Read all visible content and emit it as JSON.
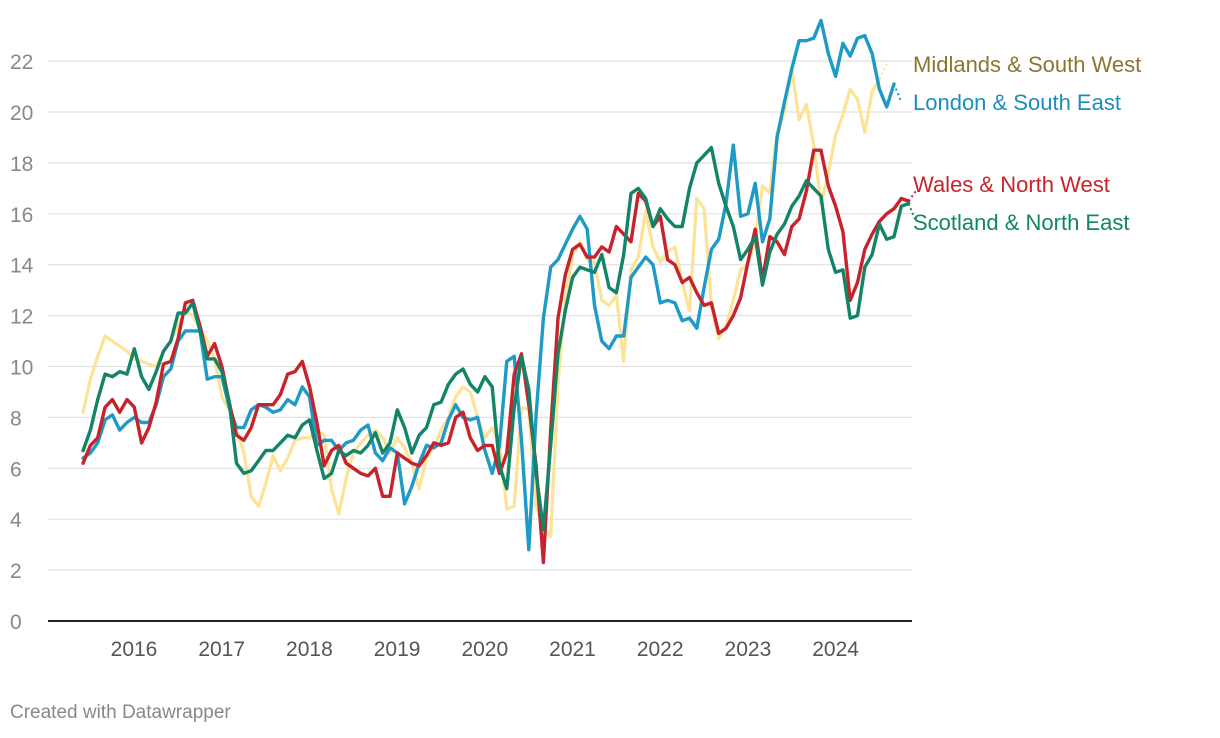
{
  "chart_data": {
    "type": "line",
    "title": "",
    "xlabel": "",
    "ylabel": "",
    "ylim": [
      0,
      23.5
    ],
    "yticks": [
      0,
      2,
      4,
      6,
      8,
      10,
      12,
      14,
      16,
      18,
      20,
      22
    ],
    "xticks": [
      2016,
      2017,
      2018,
      2019,
      2020,
      2021,
      2022,
      2023,
      2024
    ],
    "x_range": [
      2015.25,
      2024.9
    ],
    "legend": "inline-right",
    "series": [
      {
        "name": "Midlands & South West",
        "color": "#fde395",
        "label_color": "#8c7531",
        "x_start": 2015.42,
        "x_step": 0.0833,
        "values": [
          8.2,
          9.5,
          10.4,
          11.2,
          11.0,
          10.8,
          10.6,
          10.3,
          10.2,
          10.1,
          10.0,
          10.6,
          11.0,
          11.6,
          12.2,
          12.0,
          11.5,
          11.0,
          10.3,
          8.8,
          8.3,
          7.5,
          6.6,
          4.9,
          4.5,
          5.4,
          6.5,
          5.9,
          6.4,
          7.1,
          7.2,
          7.2,
          7.5,
          7.3,
          5.2,
          4.2,
          5.6,
          6.6,
          7.0,
          7.3,
          7.5,
          7.2,
          6.6,
          7.2,
          6.8,
          6.2,
          5.2,
          6.4,
          6.8,
          7.5,
          8.0,
          8.8,
          9.2,
          9.0,
          8.0,
          7.2,
          7.6,
          7.0,
          4.4,
          4.5,
          8.4,
          8.3,
          4.5,
          3.7,
          3.3,
          9.3,
          12.6,
          14.4,
          14.9,
          14.2,
          14.1,
          12.6,
          12.4,
          12.8,
          10.2,
          13.8,
          14.3,
          16.1,
          14.7,
          14.1,
          14.5,
          14.7,
          13.3,
          12.2,
          16.6,
          16.2,
          12.4,
          11.1,
          11.6,
          12.6,
          13.8,
          14.0,
          15.0,
          17.1,
          16.8,
          19.2,
          20.0,
          21.7,
          19.7,
          20.3,
          18.7,
          16.4,
          17.6,
          19.1,
          19.9,
          20.9,
          20.5,
          19.2,
          20.8,
          21.3,
          21.9
        ]
      },
      {
        "name": "London & South East",
        "color": "#1d9ac6",
        "label_color": "#1a8fbc",
        "x_start": 2015.42,
        "x_step": 0.0833,
        "values": [
          6.4,
          6.6,
          7.0,
          7.9,
          8.1,
          7.5,
          7.8,
          8.0,
          7.8,
          7.8,
          8.5,
          9.6,
          9.9,
          11.0,
          11.4,
          11.4,
          11.4,
          9.5,
          9.6,
          9.6,
          8.4,
          7.6,
          7.6,
          8.3,
          8.5,
          8.4,
          8.2,
          8.3,
          8.7,
          8.5,
          9.2,
          8.8,
          6.9,
          7.1,
          7.1,
          6.7,
          7.0,
          7.1,
          7.5,
          7.7,
          6.6,
          6.3,
          6.8,
          6.6,
          4.6,
          5.3,
          6.2,
          6.9,
          6.8,
          7.0,
          7.9,
          8.5,
          8.0,
          7.9,
          8.0,
          6.7,
          5.8,
          6.9,
          10.2,
          10.4,
          7.1,
          2.8,
          8.1,
          11.9,
          13.9,
          14.2,
          14.8,
          15.4,
          15.9,
          15.4,
          12.4,
          11.0,
          10.7,
          11.2,
          11.2,
          13.5,
          13.9,
          14.3,
          14.0,
          12.5,
          12.6,
          12.5,
          11.8,
          11.9,
          11.5,
          13.1,
          14.6,
          15.0,
          16.4,
          18.7,
          15.9,
          16.0,
          17.2,
          14.9,
          15.8,
          19.0,
          20.4,
          21.7,
          22.8,
          22.8,
          22.9,
          23.6,
          22.3,
          21.4,
          22.7,
          22.2,
          22.9,
          23.0,
          22.3,
          20.9,
          20.2,
          21.1,
          20.4
        ]
      },
      {
        "name": "Wales & North West",
        "color": "#c8222b",
        "label_color": "#c8222b",
        "x_start": 2015.42,
        "x_step": 0.0833,
        "values": [
          6.2,
          6.9,
          7.2,
          8.4,
          8.7,
          8.2,
          8.7,
          8.4,
          7.0,
          7.6,
          8.6,
          10.1,
          10.2,
          11.1,
          12.5,
          12.6,
          11.6,
          10.4,
          10.9,
          10.0,
          8.6,
          7.3,
          7.1,
          7.6,
          8.5,
          8.5,
          8.5,
          8.9,
          9.7,
          9.8,
          10.2,
          9.2,
          7.8,
          6.1,
          6.7,
          6.9,
          6.2,
          6.0,
          5.8,
          5.7,
          6.0,
          4.9,
          4.9,
          6.6,
          6.4,
          6.2,
          6.1,
          6.5,
          7.0,
          6.9,
          7.0,
          8.0,
          8.2,
          7.2,
          6.7,
          6.9,
          6.9,
          5.8,
          6.6,
          9.7,
          10.5,
          8.5,
          6.1,
          2.3,
          7.5,
          11.9,
          13.6,
          14.6,
          14.8,
          14.3,
          14.3,
          14.7,
          14.5,
          15.5,
          15.2,
          14.9,
          16.8,
          16.5,
          15.5,
          15.9,
          14.2,
          14.0,
          13.3,
          13.5,
          12.9,
          12.4,
          12.5,
          11.3,
          11.5,
          12.0,
          12.7,
          14.1,
          15.4,
          13.4,
          15.1,
          14.9,
          14.4,
          15.5,
          15.8,
          16.9,
          18.5,
          18.5,
          17.1,
          16.3,
          15.3,
          12.6,
          13.3,
          14.6,
          15.2,
          15.7,
          16.0,
          16.2,
          16.6,
          16.5,
          16.9
        ]
      },
      {
        "name": "Scotland & North East",
        "color": "#138468",
        "label_color": "#138468",
        "x_start": 2015.42,
        "x_step": 0.0833,
        "values": [
          6.7,
          7.5,
          8.7,
          9.7,
          9.6,
          9.8,
          9.7,
          10.7,
          9.6,
          9.1,
          9.8,
          10.6,
          11.0,
          12.1,
          12.1,
          12.5,
          11.4,
          10.3,
          10.3,
          9.8,
          8.6,
          6.2,
          5.8,
          5.9,
          6.3,
          6.7,
          6.7,
          7.0,
          7.3,
          7.2,
          7.7,
          7.9,
          6.7,
          5.6,
          5.8,
          6.7,
          6.5,
          6.7,
          6.6,
          6.9,
          7.4,
          6.6,
          7.0,
          8.3,
          7.6,
          6.6,
          7.3,
          7.6,
          8.5,
          8.6,
          9.3,
          9.7,
          9.9,
          9.3,
          9.0,
          9.6,
          9.2,
          6.1,
          5.2,
          8.4,
          10.4,
          9.1,
          5.8,
          3.6,
          6.9,
          10.5,
          12.2,
          13.5,
          13.9,
          13.8,
          13.7,
          14.4,
          13.1,
          12.9,
          14.4,
          16.8,
          17.0,
          16.6,
          15.5,
          16.2,
          15.8,
          15.5,
          15.5,
          17.0,
          18.0,
          18.3,
          18.6,
          17.2,
          16.3,
          15.5,
          14.2,
          14.6,
          15.1,
          13.2,
          14.5,
          15.2,
          15.6,
          16.3,
          16.7,
          17.3,
          17.0,
          16.7,
          14.6,
          13.7,
          13.8,
          11.9,
          12.0,
          13.9,
          14.4,
          15.6,
          15.0,
          15.1,
          16.3,
          16.4,
          15.7
        ]
      }
    ]
  },
  "credit": "Created with Datawrapper"
}
